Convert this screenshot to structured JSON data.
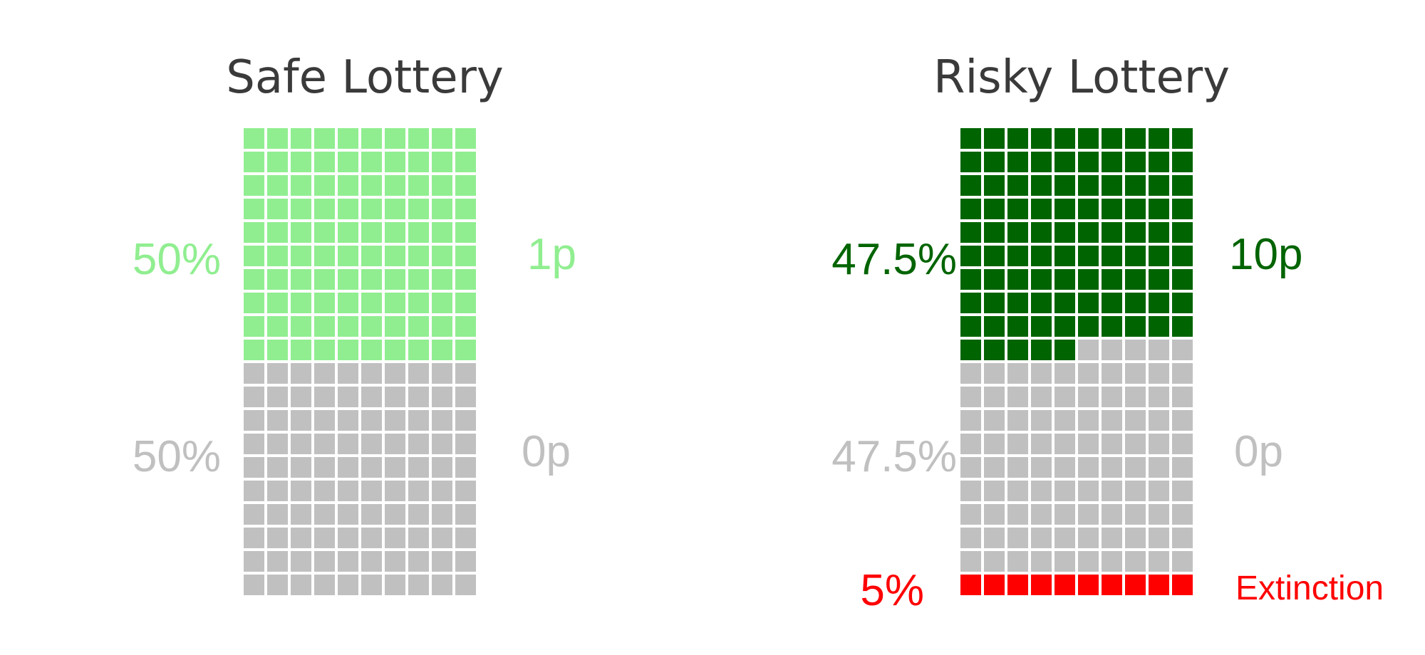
{
  "chart_data": [
    {
      "type": "waffle",
      "title": "Safe Lottery",
      "grid": {
        "columns": 10,
        "rows": 20,
        "total_cells": 200
      },
      "series": [
        {
          "name": "1p",
          "percent": "50%",
          "cells": 100,
          "color": "#90ee90"
        },
        {
          "name": "0p",
          "percent": "50%",
          "cells": 100,
          "color": "#c0c0c0"
        }
      ]
    },
    {
      "type": "waffle",
      "title": "Risky Lottery",
      "grid": {
        "columns": 10,
        "rows": 20,
        "total_cells": 200
      },
      "series": [
        {
          "name": "10p",
          "percent": "47.5%",
          "cells": 95,
          "color": "#006400"
        },
        {
          "name": "0p",
          "percent": "47.5%",
          "cells": 95,
          "color": "#c0c0c0"
        },
        {
          "name": "Extinction",
          "percent": "5%",
          "cells": 10,
          "color": "#ff0000"
        }
      ]
    }
  ]
}
